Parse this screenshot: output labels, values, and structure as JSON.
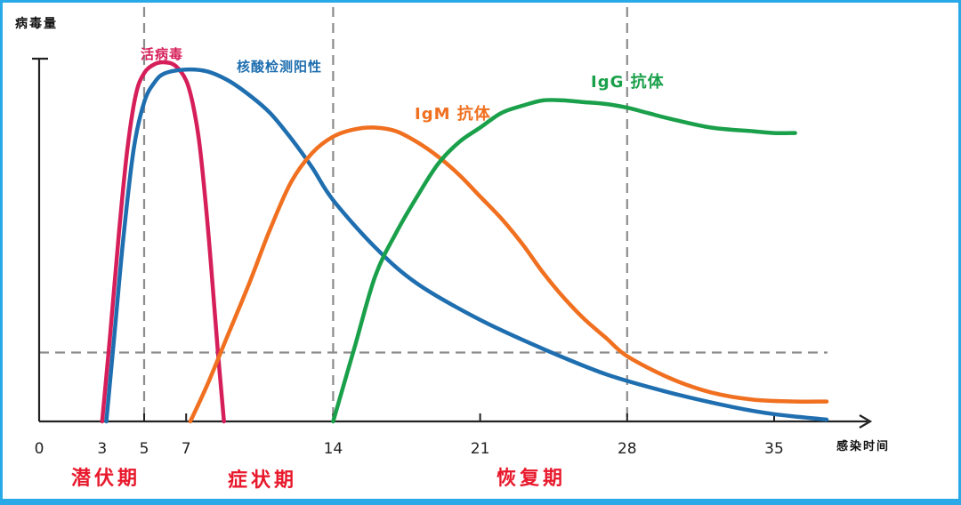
{
  "chart_data": {
    "type": "line",
    "ylabel": "病毒量",
    "xlabel": "感染时间",
    "x_ticks": [
      0,
      3,
      5,
      7,
      14,
      21,
      28,
      35
    ],
    "xlim": [
      0,
      38
    ],
    "ylim": [
      0,
      1
    ],
    "grid": "dashed guide lines at x = 5, 14, 28 and a threshold line at y ≈ 0.19",
    "guides": {
      "vertical_x": [
        5,
        14,
        28
      ],
      "threshold_y": 0.19
    },
    "phases": [
      {
        "label": "潜伏期",
        "color": "#e8192c"
      },
      {
        "label": "症状期",
        "color": "#e8192c"
      },
      {
        "label": "恢复期",
        "color": "#e8192c"
      }
    ],
    "series": [
      {
        "name": "活病毒",
        "color": "#d61f5a",
        "points": [
          [
            3,
            0
          ],
          [
            3.4,
            0.25
          ],
          [
            3.8,
            0.52
          ],
          [
            4.2,
            0.75
          ],
          [
            4.6,
            0.9
          ],
          [
            5,
            0.96
          ],
          [
            5.5,
            0.985
          ],
          [
            6,
            0.99
          ],
          [
            6.5,
            0.98
          ],
          [
            7,
            0.94
          ],
          [
            7.3,
            0.88
          ],
          [
            7.6,
            0.78
          ],
          [
            7.9,
            0.62
          ],
          [
            8.2,
            0.42
          ],
          [
            8.5,
            0.2
          ],
          [
            8.8,
            0
          ]
        ]
      },
      {
        "name": "核酸检测阳性",
        "color": "#1f6fb0",
        "points": [
          [
            3.2,
            0
          ],
          [
            3.6,
            0.25
          ],
          [
            4,
            0.5
          ],
          [
            4.5,
            0.75
          ],
          [
            5,
            0.88
          ],
          [
            5.5,
            0.935
          ],
          [
            6,
            0.96
          ],
          [
            7,
            0.97
          ],
          [
            8,
            0.965
          ],
          [
            9,
            0.94
          ],
          [
            10,
            0.9
          ],
          [
            11,
            0.85
          ],
          [
            12,
            0.78
          ],
          [
            13,
            0.7
          ],
          [
            14,
            0.61
          ],
          [
            16,
            0.48
          ],
          [
            18,
            0.38
          ],
          [
            21,
            0.28
          ],
          [
            24,
            0.2
          ],
          [
            27,
            0.13
          ],
          [
            30,
            0.08
          ],
          [
            33,
            0.04
          ],
          [
            35,
            0.02
          ],
          [
            37.5,
            0.005
          ]
        ]
      },
      {
        "name": "IgM 抗体",
        "color": "#f07020",
        "points": [
          [
            7.2,
            0
          ],
          [
            8,
            0.1
          ],
          [
            9,
            0.24
          ],
          [
            10,
            0.38
          ],
          [
            11,
            0.53
          ],
          [
            12,
            0.66
          ],
          [
            13,
            0.74
          ],
          [
            14,
            0.785
          ],
          [
            15,
            0.805
          ],
          [
            16,
            0.81
          ],
          [
            17,
            0.8
          ],
          [
            18,
            0.77
          ],
          [
            19,
            0.73
          ],
          [
            20,
            0.68
          ],
          [
            21,
            0.62
          ],
          [
            22,
            0.56
          ],
          [
            23,
            0.49
          ],
          [
            24,
            0.41
          ],
          [
            25,
            0.34
          ],
          [
            26,
            0.28
          ],
          [
            27,
            0.23
          ],
          [
            28,
            0.18
          ],
          [
            30,
            0.12
          ],
          [
            32,
            0.08
          ],
          [
            34,
            0.06
          ],
          [
            36,
            0.055
          ],
          [
            37.5,
            0.055
          ]
        ]
      },
      {
        "name": "IgG 抗体",
        "color": "#1aa04a",
        "points": [
          [
            14,
            0
          ],
          [
            15,
            0.2
          ],
          [
            16,
            0.4
          ],
          [
            17,
            0.52
          ],
          [
            18,
            0.62
          ],
          [
            19,
            0.71
          ],
          [
            20,
            0.77
          ],
          [
            21,
            0.81
          ],
          [
            22,
            0.85
          ],
          [
            23,
            0.87
          ],
          [
            24,
            0.885
          ],
          [
            25,
            0.885
          ],
          [
            26,
            0.88
          ],
          [
            27,
            0.875
          ],
          [
            28,
            0.865
          ],
          [
            29,
            0.85
          ],
          [
            30,
            0.835
          ],
          [
            32,
            0.81
          ],
          [
            34,
            0.8
          ],
          [
            35,
            0.795
          ],
          [
            36,
            0.795
          ]
        ]
      }
    ]
  }
}
